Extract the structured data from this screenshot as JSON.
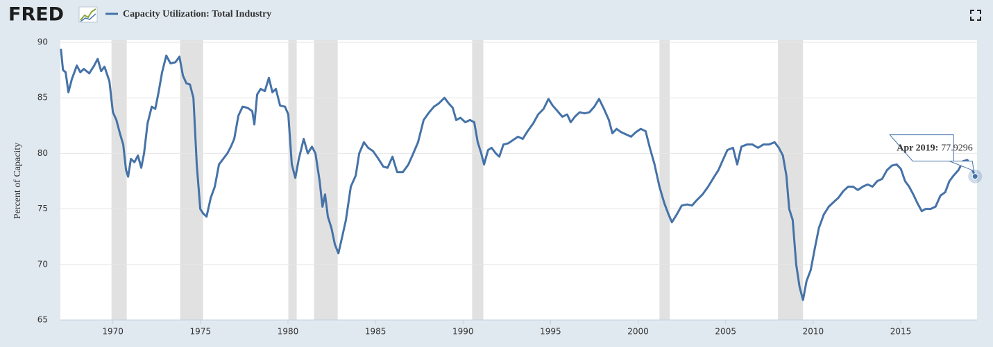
{
  "logo": "FRED",
  "chart_data": {
    "type": "line",
    "ylabel": "Percent of Capacity",
    "xlim": [
      1967,
      2019.36
    ],
    "ylim": [
      65,
      90
    ],
    "xticks": [
      1970,
      1975,
      1980,
      1985,
      1990,
      1995,
      2000,
      2005,
      2010,
      2015
    ],
    "yticks": [
      65,
      70,
      75,
      80,
      85,
      90
    ],
    "grid": true,
    "recession_color": "#e1e1e1",
    "recessions": [
      [
        1969.92,
        1970.79
      ],
      [
        1973.84,
        1975.15
      ],
      [
        1980.02,
        1980.5
      ],
      [
        1981.49,
        1982.84
      ],
      [
        1990.52,
        1991.16
      ],
      [
        2001.22,
        2001.81
      ],
      [
        2007.99,
        2009.42
      ]
    ],
    "tooltip": "Apr 2019:",
    "series": [
      {
        "name": "Capacity Utilization: Total Industry",
        "color": "#4572a7",
        "x": [
          1967.03,
          1967.15,
          1967.3,
          1967.46,
          1967.66,
          1967.94,
          1968.14,
          1968.34,
          1968.65,
          1968.93,
          1969.13,
          1969.33,
          1969.52,
          1969.8,
          1970.0,
          1970.2,
          1970.4,
          1970.59,
          1970.75,
          1970.87,
          1971.03,
          1971.23,
          1971.43,
          1971.62,
          1971.78,
          1971.98,
          1972.22,
          1972.42,
          1972.61,
          1972.81,
          1973.05,
          1973.29,
          1973.57,
          1973.8,
          1974.0,
          1974.2,
          1974.4,
          1974.6,
          1974.79,
          1974.99,
          1975.15,
          1975.35,
          1975.59,
          1975.82,
          1976.06,
          1976.3,
          1976.54,
          1976.74,
          1976.93,
          1977.17,
          1977.41,
          1977.69,
          1977.96,
          1978.08,
          1978.24,
          1978.44,
          1978.68,
          1978.91,
          1979.11,
          1979.31,
          1979.55,
          1979.83,
          1980.02,
          1980.22,
          1980.42,
          1980.62,
          1980.9,
          1981.13,
          1981.37,
          1981.57,
          1981.81,
          1981.97,
          1982.12,
          1982.28,
          1982.48,
          1982.68,
          1982.88,
          1983.07,
          1983.31,
          1983.59,
          1983.87,
          1984.07,
          1984.34,
          1984.58,
          1984.86,
          1985.17,
          1985.45,
          1985.69,
          1985.97,
          1986.24,
          1986.56,
          1986.88,
          1987.16,
          1987.43,
          1987.75,
          1988.07,
          1988.34,
          1988.62,
          1988.94,
          1989.18,
          1989.41,
          1989.61,
          1989.85,
          1990.13,
          1990.4,
          1990.64,
          1990.84,
          1991.04,
          1991.2,
          1991.43,
          1991.63,
          1991.87,
          1992.07,
          1992.31,
          1992.58,
          1992.86,
          1993.14,
          1993.41,
          1993.69,
          1994.01,
          1994.29,
          1994.6,
          1994.88,
          1995.12,
          1995.4,
          1995.67,
          1995.95,
          1996.15,
          1996.39,
          1996.66,
          1996.94,
          1997.22,
          1997.5,
          1997.77,
          1998.05,
          1998.33,
          1998.53,
          1998.77,
          1999.04,
          1999.32,
          1999.6,
          1999.87,
          2000.15,
          2000.43,
          2000.67,
          2000.94,
          2001.22,
          2001.5,
          2001.74,
          2001.93,
          2002.21,
          2002.49,
          2002.8,
          2003.08,
          2003.36,
          2003.68,
          2004.0,
          2004.31,
          2004.59,
          2004.87,
          2005.1,
          2005.42,
          2005.66,
          2005.9,
          2006.22,
          2006.53,
          2006.85,
          2007.16,
          2007.48,
          2007.8,
          2008.04,
          2008.27,
          2008.47,
          2008.63,
          2008.83,
          2009.03,
          2009.22,
          2009.42,
          2009.62,
          2009.86,
          2010.1,
          2010.33,
          2010.61,
          2010.89,
          2011.16,
          2011.44,
          2011.72,
          2012.0,
          2012.28,
          2012.55,
          2012.83,
          2013.11,
          2013.39,
          2013.66,
          2013.94,
          2014.22,
          2014.5,
          2014.77,
          2015.01,
          2015.25,
          2015.48,
          2015.72,
          2015.96,
          2016.2,
          2016.43,
          2016.71,
          2016.99,
          2017.27,
          2017.54,
          2017.78,
          2018.02,
          2018.3,
          2018.57,
          2018.81,
          2019.05,
          2019.25
        ],
        "values": [
          89.4,
          87.5,
          87.3,
          85.5,
          86.7,
          87.9,
          87.3,
          87.6,
          87.2,
          87.9,
          88.5,
          87.4,
          87.8,
          86.5,
          83.7,
          83.0,
          81.8,
          80.8,
          78.5,
          77.9,
          79.5,
          79.2,
          79.8,
          78.7,
          80.0,
          82.7,
          84.2,
          84.0,
          85.5,
          87.3,
          88.8,
          88.1,
          88.2,
          88.7,
          87.0,
          86.3,
          86.2,
          85.0,
          79.0,
          75.0,
          74.6,
          74.3,
          76.0,
          77.0,
          79.0,
          79.5,
          80.0,
          80.6,
          81.3,
          83.4,
          84.2,
          84.1,
          83.8,
          82.6,
          85.3,
          85.8,
          85.6,
          86.8,
          85.5,
          85.8,
          84.3,
          84.2,
          83.5,
          79.0,
          77.8,
          79.5,
          81.3,
          80.0,
          80.6,
          80.0,
          77.5,
          75.2,
          76.3,
          74.3,
          73.3,
          71.8,
          71.0,
          72.3,
          74.0,
          77.0,
          78.0,
          80.0,
          81.0,
          80.5,
          80.2,
          79.5,
          78.8,
          78.7,
          79.7,
          78.3,
          78.3,
          79.0,
          80.0,
          81.0,
          83.0,
          83.7,
          84.2,
          84.5,
          85.0,
          84.5,
          84.1,
          83.0,
          83.2,
          82.8,
          83.0,
          82.8,
          81.0,
          80.0,
          79.0,
          80.3,
          80.5,
          80.0,
          79.7,
          80.8,
          80.9,
          81.2,
          81.5,
          81.3,
          82.0,
          82.7,
          83.5,
          84.0,
          84.9,
          84.3,
          83.8,
          83.3,
          83.5,
          82.8,
          83.3,
          83.7,
          83.6,
          83.7,
          84.2,
          84.9,
          84.0,
          83.0,
          81.8,
          82.2,
          81.9,
          81.7,
          81.5,
          81.9,
          82.2,
          82.0,
          80.5,
          79.0,
          77.0,
          75.5,
          74.5,
          73.8,
          74.5,
          75.3,
          75.4,
          75.3,
          75.8,
          76.3,
          77.0,
          77.8,
          78.5,
          79.5,
          80.3,
          80.5,
          79.0,
          80.6,
          80.8,
          80.8,
          80.5,
          80.8,
          80.8,
          81.0,
          80.5,
          79.8,
          78.0,
          75.0,
          74.0,
          70.0,
          68.0,
          66.8,
          68.5,
          69.5,
          71.5,
          73.3,
          74.5,
          75.2,
          75.6,
          76.0,
          76.6,
          77.0,
          77.0,
          76.7,
          77.0,
          77.2,
          77.0,
          77.5,
          77.7,
          78.5,
          78.9,
          79.0,
          78.6,
          77.5,
          77.0,
          76.3,
          75.5,
          74.8,
          75.0,
          75.0,
          75.2,
          76.2,
          76.5,
          77.5,
          78.0,
          78.5,
          79.3,
          79.4,
          78.7,
          77.9296
        ]
      }
    ]
  }
}
